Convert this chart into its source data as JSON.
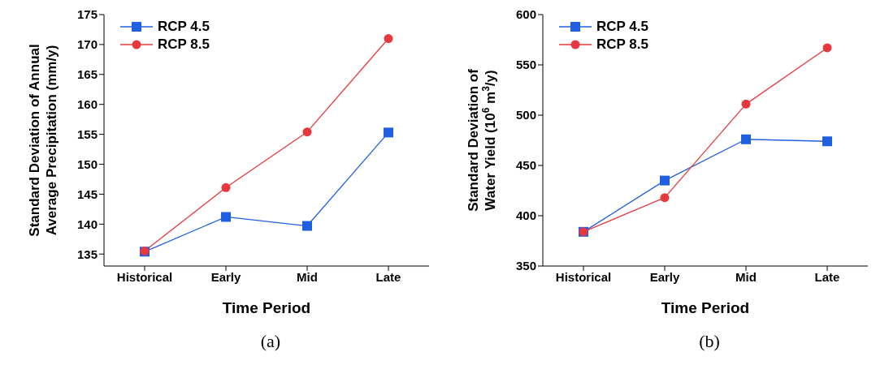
{
  "chart_data": [
    {
      "type": "line",
      "title": "(a)",
      "xlabel": "Time Period",
      "ylabel": "Standard Deviation of Annual\nAverage Precipitation (mm/y)",
      "categories": [
        "Historical",
        "Early",
        "Mid",
        "Late"
      ],
      "series": [
        {
          "name": "RCP 4.5",
          "color": "#1f5fe0",
          "marker": "square",
          "values": [
            135.4,
            141.2,
            139.7,
            155.3
          ]
        },
        {
          "name": "RCP 8.5",
          "color": "#e8383d",
          "marker": "circle",
          "values": [
            135.5,
            146.1,
            155.4,
            171
          ]
        }
      ],
      "ylim": [
        133,
        175
      ],
      "yticks": [
        135,
        140,
        145,
        150,
        155,
        160,
        165,
        170,
        175
      ],
      "legend": "top left",
      "grid": false
    },
    {
      "type": "line",
      "title": "(b)",
      "xlabel": "Time Period",
      "ylabel": "Standard Deviation of\nWater Yield (10$^{6}$ m$^{3}$/y)",
      "categories": [
        "Historical",
        "Early",
        "Mid",
        "Late"
      ],
      "series": [
        {
          "name": "RCP 4.5",
          "color": "#1f5fe0",
          "marker": "square",
          "values": [
            384,
            435,
            476,
            474
          ]
        },
        {
          "name": "RCP 8.5",
          "color": "#e8383d",
          "marker": "circle",
          "values": [
            384,
            418,
            511,
            567
          ]
        }
      ],
      "ylim": [
        350,
        600
      ],
      "yticks": [
        350,
        400,
        450,
        500,
        550,
        600
      ],
      "legend": "top left",
      "grid": false
    }
  ]
}
